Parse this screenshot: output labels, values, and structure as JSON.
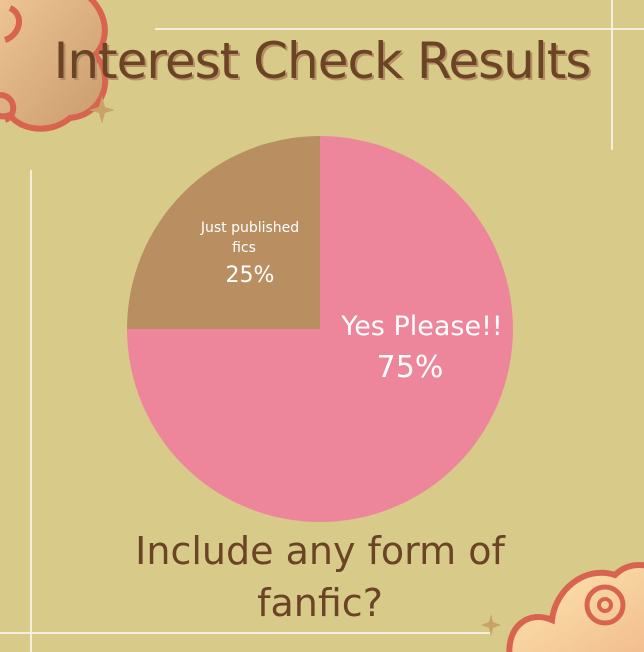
{
  "title": "Interest Check Results",
  "question": "Include any form of fanfic?",
  "chart_data": {
    "type": "pie",
    "title": "Interest Check Results",
    "slices": [
      {
        "label": "Yes Please!!",
        "value": 75,
        "display": "75%",
        "color": "#ee869b"
      },
      {
        "label": "Just published fics",
        "value": 25,
        "display": "25%",
        "color": "#b98f62"
      }
    ]
  },
  "colors": {
    "background": "#d8cb8a",
    "text": "#6b4426",
    "cloud_outline": "#d86450"
  }
}
